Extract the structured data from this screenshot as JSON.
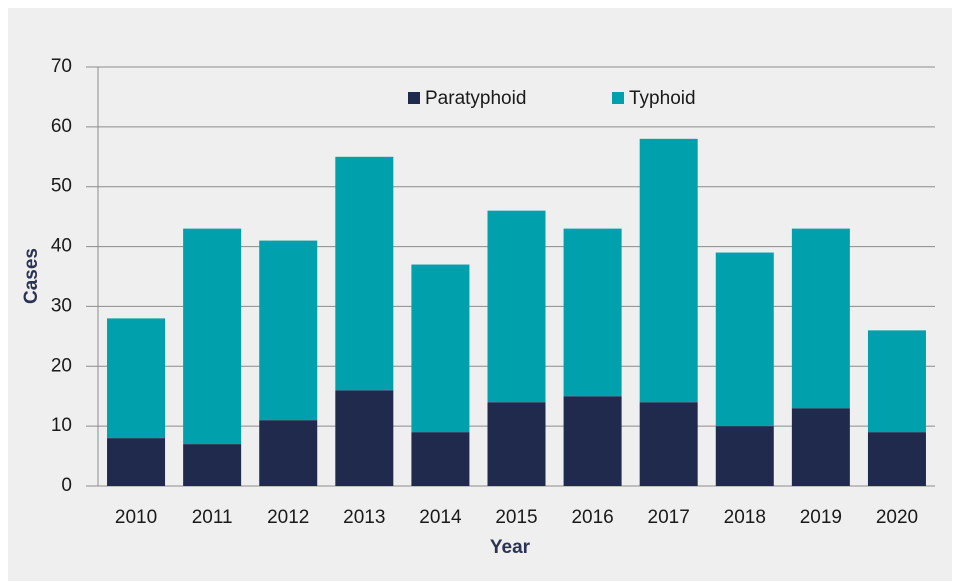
{
  "chart_data": {
    "type": "stacked_bar",
    "x_label": "Year",
    "y_label": "Cases",
    "categories": [
      "2010",
      "2011",
      "2012",
      "2013",
      "2014",
      "2015",
      "2016",
      "2017",
      "2018",
      "2019",
      "2020"
    ],
    "series": [
      {
        "name": "Paratyphoid",
        "color": "#1f2a4c",
        "values": [
          8,
          7,
          11,
          16,
          9,
          14,
          15,
          14,
          10,
          13,
          9
        ]
      },
      {
        "name": "Typhoid",
        "color": "#00a0ac",
        "values": [
          20,
          36,
          30,
          39,
          28,
          32,
          28,
          44,
          29,
          30,
          17
        ]
      }
    ],
    "ylim": [
      0,
      70
    ],
    "yticks": [
      0,
      10,
      20,
      30,
      40,
      50,
      60,
      70
    ],
    "grid": true,
    "legend": "top"
  }
}
